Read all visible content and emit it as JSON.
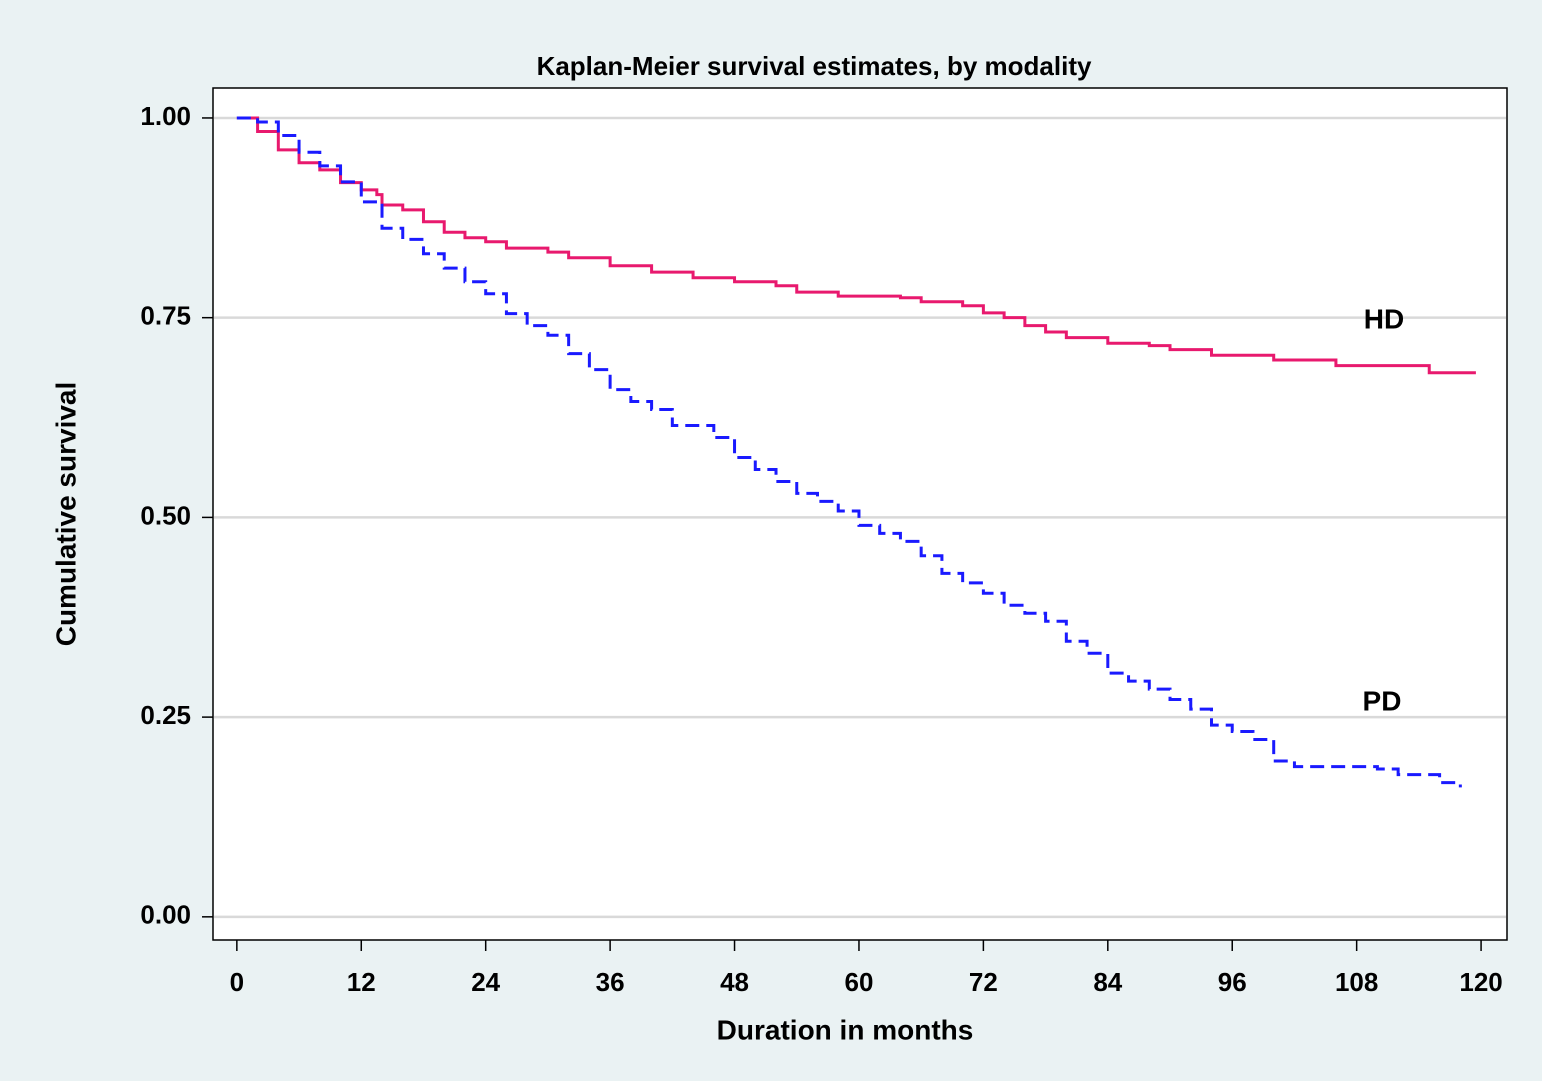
{
  "chart_data": {
    "type": "line",
    "title": "Kaplan-Meier survival estimates, by modality",
    "xlabel": "Duration in months",
    "ylabel": "Cumulative survival",
    "drawstyle": "steps-post",
    "xlim": [
      -2.3,
      122.5
    ],
    "ylim": [
      -0.029,
      1.0375
    ],
    "xticks": [
      0,
      12,
      24,
      36,
      48,
      60,
      72,
      84,
      96,
      108,
      120
    ],
    "yticks": [
      {
        "value": 0,
        "label": "0.00"
      },
      {
        "value": 0.25,
        "label": "0.25"
      },
      {
        "value": 0.5,
        "label": "0.50"
      },
      {
        "value": 0.75,
        "label": "0.75"
      },
      {
        "value": 1,
        "label": "1.00"
      }
    ],
    "grid": true,
    "series": [
      {
        "name": "HD",
        "color": "#e8196e",
        "linestyle": "solid",
        "x": [
          0,
          2,
          4,
          6,
          8,
          10,
          12,
          13.5,
          14,
          16,
          18,
          20,
          22,
          24,
          26,
          30,
          32,
          36,
          40,
          44,
          48,
          52,
          54,
          58,
          64,
          66,
          70,
          72,
          74,
          76,
          78,
          80,
          84,
          88,
          90,
          94,
          100,
          106,
          115,
          119.5
        ],
        "values": [
          1.0,
          0.983,
          0.96,
          0.944,
          0.935,
          0.919,
          0.91,
          0.904,
          0.891,
          0.885,
          0.87,
          0.857,
          0.85,
          0.845,
          0.837,
          0.832,
          0.825,
          0.815,
          0.807,
          0.8,
          0.795,
          0.79,
          0.782,
          0.777,
          0.775,
          0.77,
          0.765,
          0.756,
          0.75,
          0.74,
          0.732,
          0.725,
          0.718,
          0.715,
          0.71,
          0.703,
          0.697,
          0.69,
          0.681,
          0.681
        ]
      },
      {
        "name": "PD",
        "color": "#1a1aff",
        "linestyle": "dashed",
        "x": [
          0,
          2,
          4,
          6,
          8,
          10,
          12,
          14,
          16,
          18,
          20,
          22,
          24,
          26,
          28,
          30,
          32,
          34,
          36,
          38,
          40,
          42,
          46,
          48,
          50,
          52,
          54,
          56,
          58,
          60,
          62,
          64,
          66,
          68,
          70,
          72,
          74,
          76,
          78,
          80,
          82,
          84,
          86,
          88,
          90,
          92,
          94,
          96,
          98,
          100,
          102,
          110,
          112,
          116,
          118
        ],
        "values": [
          1.0,
          0.995,
          0.978,
          0.957,
          0.94,
          0.92,
          0.895,
          0.862,
          0.848,
          0.83,
          0.812,
          0.795,
          0.78,
          0.755,
          0.74,
          0.728,
          0.705,
          0.685,
          0.66,
          0.645,
          0.635,
          0.615,
          0.6,
          0.575,
          0.56,
          0.545,
          0.53,
          0.52,
          0.508,
          0.49,
          0.48,
          0.47,
          0.452,
          0.43,
          0.418,
          0.405,
          0.39,
          0.38,
          0.37,
          0.345,
          0.33,
          0.305,
          0.295,
          0.285,
          0.272,
          0.26,
          0.24,
          0.232,
          0.222,
          0.195,
          0.188,
          0.185,
          0.178,
          0.168,
          0.162
        ]
      }
    ]
  }
}
